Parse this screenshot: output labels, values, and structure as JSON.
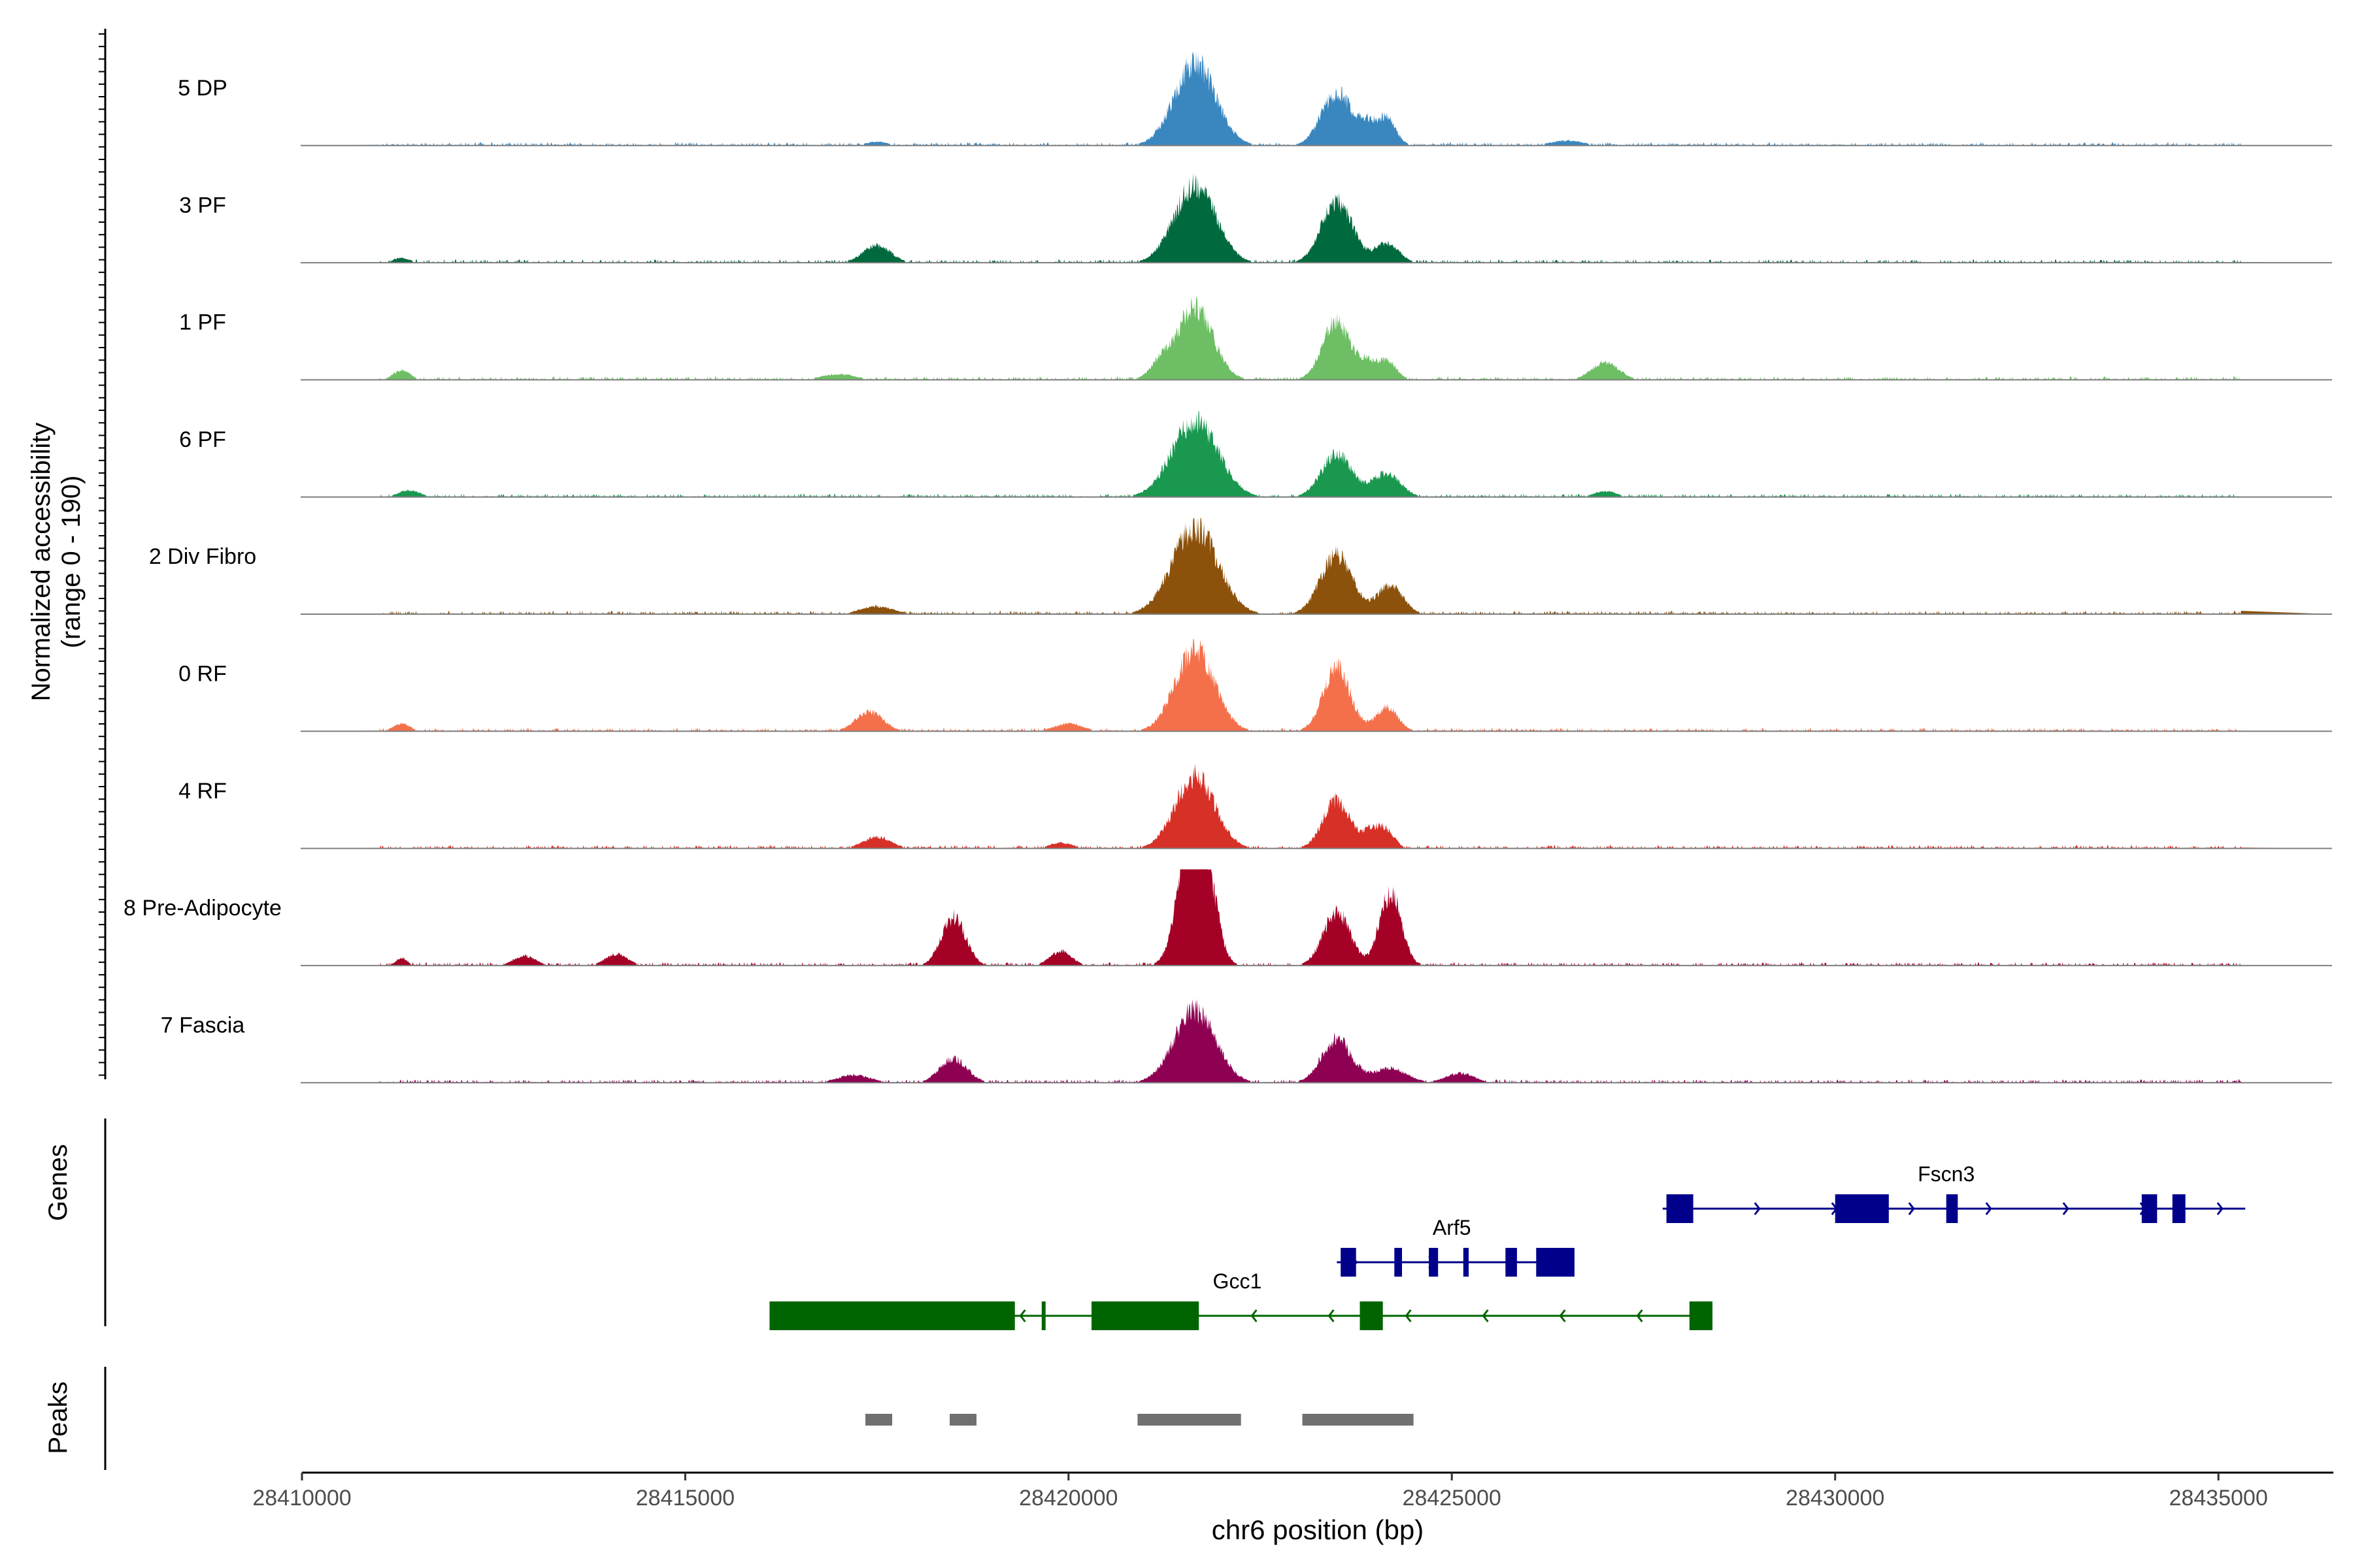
{
  "chart_data": {
    "type": "area",
    "title": "",
    "ylabel": "Normalized accessibility",
    "ylabel_range": "(range 0 - 190)",
    "xlabel": "chr6 position (bp)",
    "xlim": [
      28410000,
      28436500
    ],
    "x_ticks": [
      28410000,
      28415000,
      28420000,
      28425000,
      28430000,
      28435000
    ],
    "x_tick_labels": [
      "28410000",
      "28415000",
      "28420000",
      "28425000",
      "28430000",
      "28435000"
    ],
    "y_range": [
      0,
      190
    ],
    "tracks": [
      {
        "name": "5 DP",
        "color": "#3a87c0",
        "peaks": [
          [
            28421650,
            0.85,
            380
          ],
          [
            28423500,
            0.55,
            280
          ],
          [
            28423900,
            0.18,
            160
          ],
          [
            28424150,
            0.28,
            170
          ],
          [
            28417500,
            0.04,
            200
          ],
          [
            28426500,
            0.05,
            300
          ]
        ]
      },
      {
        "name": "3 PF",
        "color": "#00693e",
        "peaks": [
          [
            28421650,
            0.8,
            380
          ],
          [
            28423500,
            0.65,
            280
          ],
          [
            28424150,
            0.2,
            220
          ],
          [
            28417500,
            0.18,
            250
          ],
          [
            28411300,
            0.05,
            150
          ]
        ]
      },
      {
        "name": "1 PF",
        "color": "#6dbe64",
        "peaks": [
          [
            28421650,
            0.75,
            330
          ],
          [
            28421200,
            0.15,
            200
          ],
          [
            28423500,
            0.6,
            260
          ],
          [
            28423900,
            0.15,
            150
          ],
          [
            28424150,
            0.2,
            170
          ],
          [
            28427000,
            0.18,
            250
          ],
          [
            28411300,
            0.1,
            150
          ],
          [
            28417000,
            0.06,
            300
          ]
        ]
      },
      {
        "name": "6 PF",
        "color": "#1a9850",
        "peaks": [
          [
            28421650,
            0.8,
            420
          ],
          [
            28423500,
            0.45,
            280
          ],
          [
            28424150,
            0.25,
            250
          ],
          [
            28411400,
            0.07,
            200
          ],
          [
            28427000,
            0.06,
            200
          ]
        ]
      },
      {
        "name": "2 Div Fibro",
        "color": "#8c510a",
        "peaks": [
          [
            28421650,
            0.9,
            420
          ],
          [
            28423500,
            0.6,
            300
          ],
          [
            28424200,
            0.3,
            230
          ],
          [
            28417500,
            0.08,
            300
          ]
        ]
      },
      {
        "name": "0 RF",
        "color": "#f4704a",
        "peaks": [
          [
            28421650,
            0.85,
            360
          ],
          [
            28423500,
            0.65,
            250
          ],
          [
            28424150,
            0.25,
            200
          ],
          [
            28417400,
            0.2,
            250
          ],
          [
            28411300,
            0.08,
            150
          ],
          [
            28420000,
            0.08,
            250
          ]
        ]
      },
      {
        "name": "4 RF",
        "color": "#d73027",
        "peaks": [
          [
            28421650,
            0.75,
            360
          ],
          [
            28423500,
            0.5,
            250
          ],
          [
            28423950,
            0.18,
            150
          ],
          [
            28424150,
            0.18,
            150
          ],
          [
            28417500,
            0.12,
            250
          ],
          [
            28419900,
            0.06,
            200
          ]
        ]
      },
      {
        "name": "8 Pre-Adipocyte",
        "color": "#a50026",
        "peaks": [
          [
            28421550,
            1.0,
            220
          ],
          [
            28421800,
            0.9,
            200
          ],
          [
            28423500,
            0.55,
            250
          ],
          [
            28424200,
            0.75,
            200
          ],
          [
            28418500,
            0.5,
            220
          ],
          [
            28412900,
            0.1,
            200
          ],
          [
            28414100,
            0.12,
            200
          ],
          [
            28419900,
            0.15,
            200
          ],
          [
            28411300,
            0.08,
            100
          ]
        ]
      },
      {
        "name": "7 Fascia",
        "color": "#8e0152",
        "peaks": [
          [
            28421650,
            0.75,
            380
          ],
          [
            28423500,
            0.45,
            280
          ],
          [
            28424200,
            0.15,
            300
          ],
          [
            28418500,
            0.25,
            250
          ],
          [
            28417200,
            0.08,
            300
          ],
          [
            28425100,
            0.1,
            250
          ]
        ]
      }
    ],
    "genes_label": "Genes",
    "genes": [
      {
        "name": "Fscn3",
        "color": "#00008b",
        "start": 28427750,
        "end": 28435350,
        "strand": "+",
        "exons": [
          [
            28427800,
            28428150
          ],
          [
            28430000,
            28430700
          ],
          [
            28431450,
            28431600
          ],
          [
            28434000,
            28434200
          ],
          [
            28434400,
            28434570
          ]
        ]
      },
      {
        "name": "Arf5",
        "color": "#00008b",
        "start": 28423500,
        "end": 28426600,
        "strand": "+",
        "exons": [
          [
            28423550,
            28423750
          ],
          [
            28424250,
            28424350
          ],
          [
            28424700,
            28424820
          ],
          [
            28425150,
            28425220
          ],
          [
            28425700,
            28425850
          ],
          [
            28426100,
            28426600
          ]
        ]
      },
      {
        "name": "Gcc1",
        "color": "#006400",
        "start": 28416100,
        "end": 28428400,
        "strand": "-",
        "exons": [
          [
            28416100,
            28419300
          ],
          [
            28419650,
            28419700
          ],
          [
            28420300,
            28421700
          ],
          [
            28423800,
            28424100
          ],
          [
            28428100,
            28428400
          ]
        ]
      }
    ],
    "peaks_label": "Peaks",
    "peak_regions": [
      [
        28417350,
        28417700
      ],
      [
        28418450,
        28418800
      ],
      [
        28420900,
        28422250
      ],
      [
        28423050,
        28424500
      ]
    ]
  }
}
